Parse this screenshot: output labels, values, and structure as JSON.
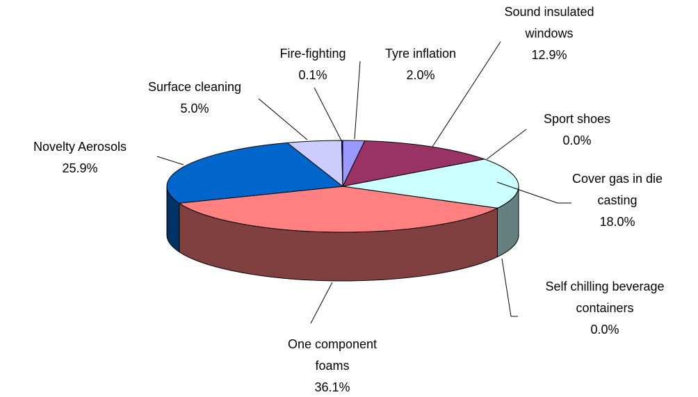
{
  "chart_data": {
    "type": "pie",
    "categories": [
      "Tyre inflation",
      "Sound insulated windows",
      "Sport shoes",
      "Cover gas in die casting",
      "Self chilling beverage containers",
      "One component foams",
      "Novelty Aerosols",
      "Surface cleaning",
      "Fire-fighting"
    ],
    "values": [
      2.0,
      12.9,
      0.0,
      18.0,
      0.0,
      36.1,
      25.9,
      5.0,
      0.1
    ],
    "value_labels": [
      "2.0%",
      "12.9%",
      "0.0%",
      "18.0%",
      "0.0%",
      "36.1%",
      "25.9%",
      "5.0%",
      "0.1%"
    ],
    "colors": [
      "#9999ff",
      "#993366",
      "#ffffcc",
      "#ccffff",
      "#660066",
      "#ff8080",
      "#0066cc",
      "#ccccff",
      "#000080"
    ]
  }
}
